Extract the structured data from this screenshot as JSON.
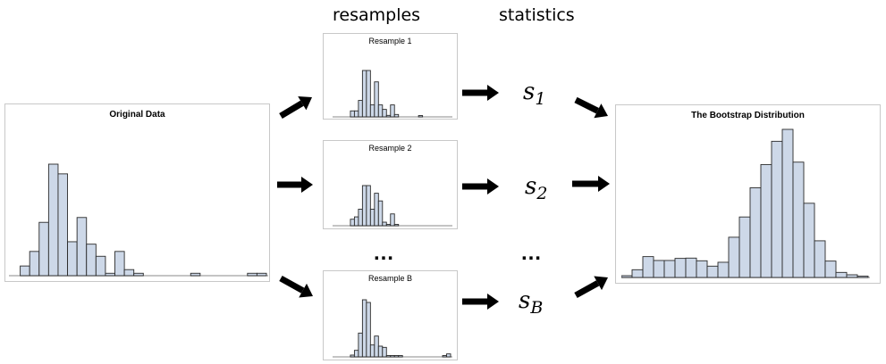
{
  "headers": {
    "resamples": "resamples",
    "statistics": "statistics"
  },
  "original": {
    "title": "Original Data",
    "counts": [
      0,
      4,
      10,
      22,
      46,
      42,
      14,
      24,
      13,
      8,
      1,
      10,
      2.5,
      1,
      0,
      0,
      0,
      0,
      0,
      1,
      0,
      0,
      0,
      0,
      0,
      1,
      1
    ]
  },
  "resamples": [
    {
      "title": "Resample 1",
      "counts": [
        0,
        0,
        0,
        0,
        20,
        20,
        55,
        155,
        155,
        40,
        117,
        40,
        25,
        5,
        40,
        8,
        0,
        0,
        0,
        0,
        0,
        2,
        0,
        0,
        0,
        0,
        0,
        0,
        0
      ]
    },
    {
      "title": "Resample 2",
      "counts": [
        0,
        0,
        0,
        0,
        22,
        30,
        56,
        136,
        136,
        56,
        110,
        84,
        12,
        4,
        40,
        2,
        0,
        0,
        0,
        0,
        0,
        0,
        0,
        0,
        0,
        0,
        0,
        0,
        0
      ]
    },
    {
      "title": "Resample B",
      "counts": [
        0,
        0,
        0,
        0,
        6,
        22,
        80,
        192,
        183,
        40,
        70,
        36,
        32,
        1,
        1,
        1,
        1,
        0,
        0,
        0,
        0,
        0,
        0,
        0,
        0,
        0,
        0,
        4,
        10
      ]
    }
  ],
  "statistics": [
    {
      "symbol": "s",
      "subscript": "1"
    },
    {
      "symbol": "s",
      "subscript": "2"
    },
    {
      "symbol": "s",
      "subscript": "B"
    }
  ],
  "ellipsis": "…",
  "bootstrap": {
    "title": "The Bootstrap Distribution",
    "counts": [
      6,
      26,
      70,
      57,
      57,
      64,
      65,
      56,
      38,
      51,
      135,
      203,
      301,
      379,
      457,
      497,
      387,
      249,
      123,
      55,
      17,
      9,
      2
    ]
  },
  "colors": {
    "bar_fill": "#cdd8e8",
    "bar_stroke": "#2a2a2a",
    "axis": "#b0b0b0",
    "arrow": "#000000"
  }
}
